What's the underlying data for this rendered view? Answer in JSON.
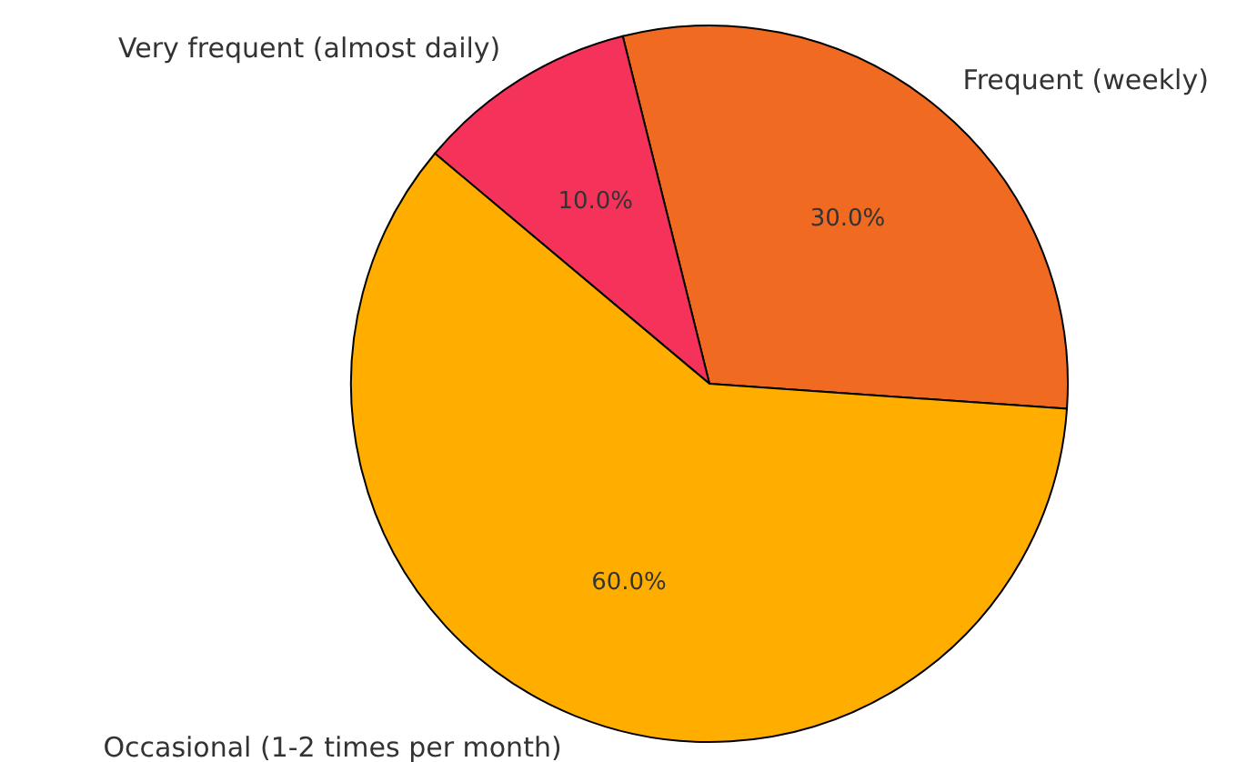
{
  "chart_data": {
    "type": "pie",
    "categories": [
      "Frequent (weekly)",
      "Very frequent (almost daily)",
      "Occasional (1-2 times per month)"
    ],
    "values": [
      30,
      10,
      60
    ],
    "colors": [
      "#f06a22",
      "#f5335a",
      "#ffae00"
    ],
    "value_labels": [
      "30.0%",
      "10.0%",
      "60.0%"
    ]
  }
}
